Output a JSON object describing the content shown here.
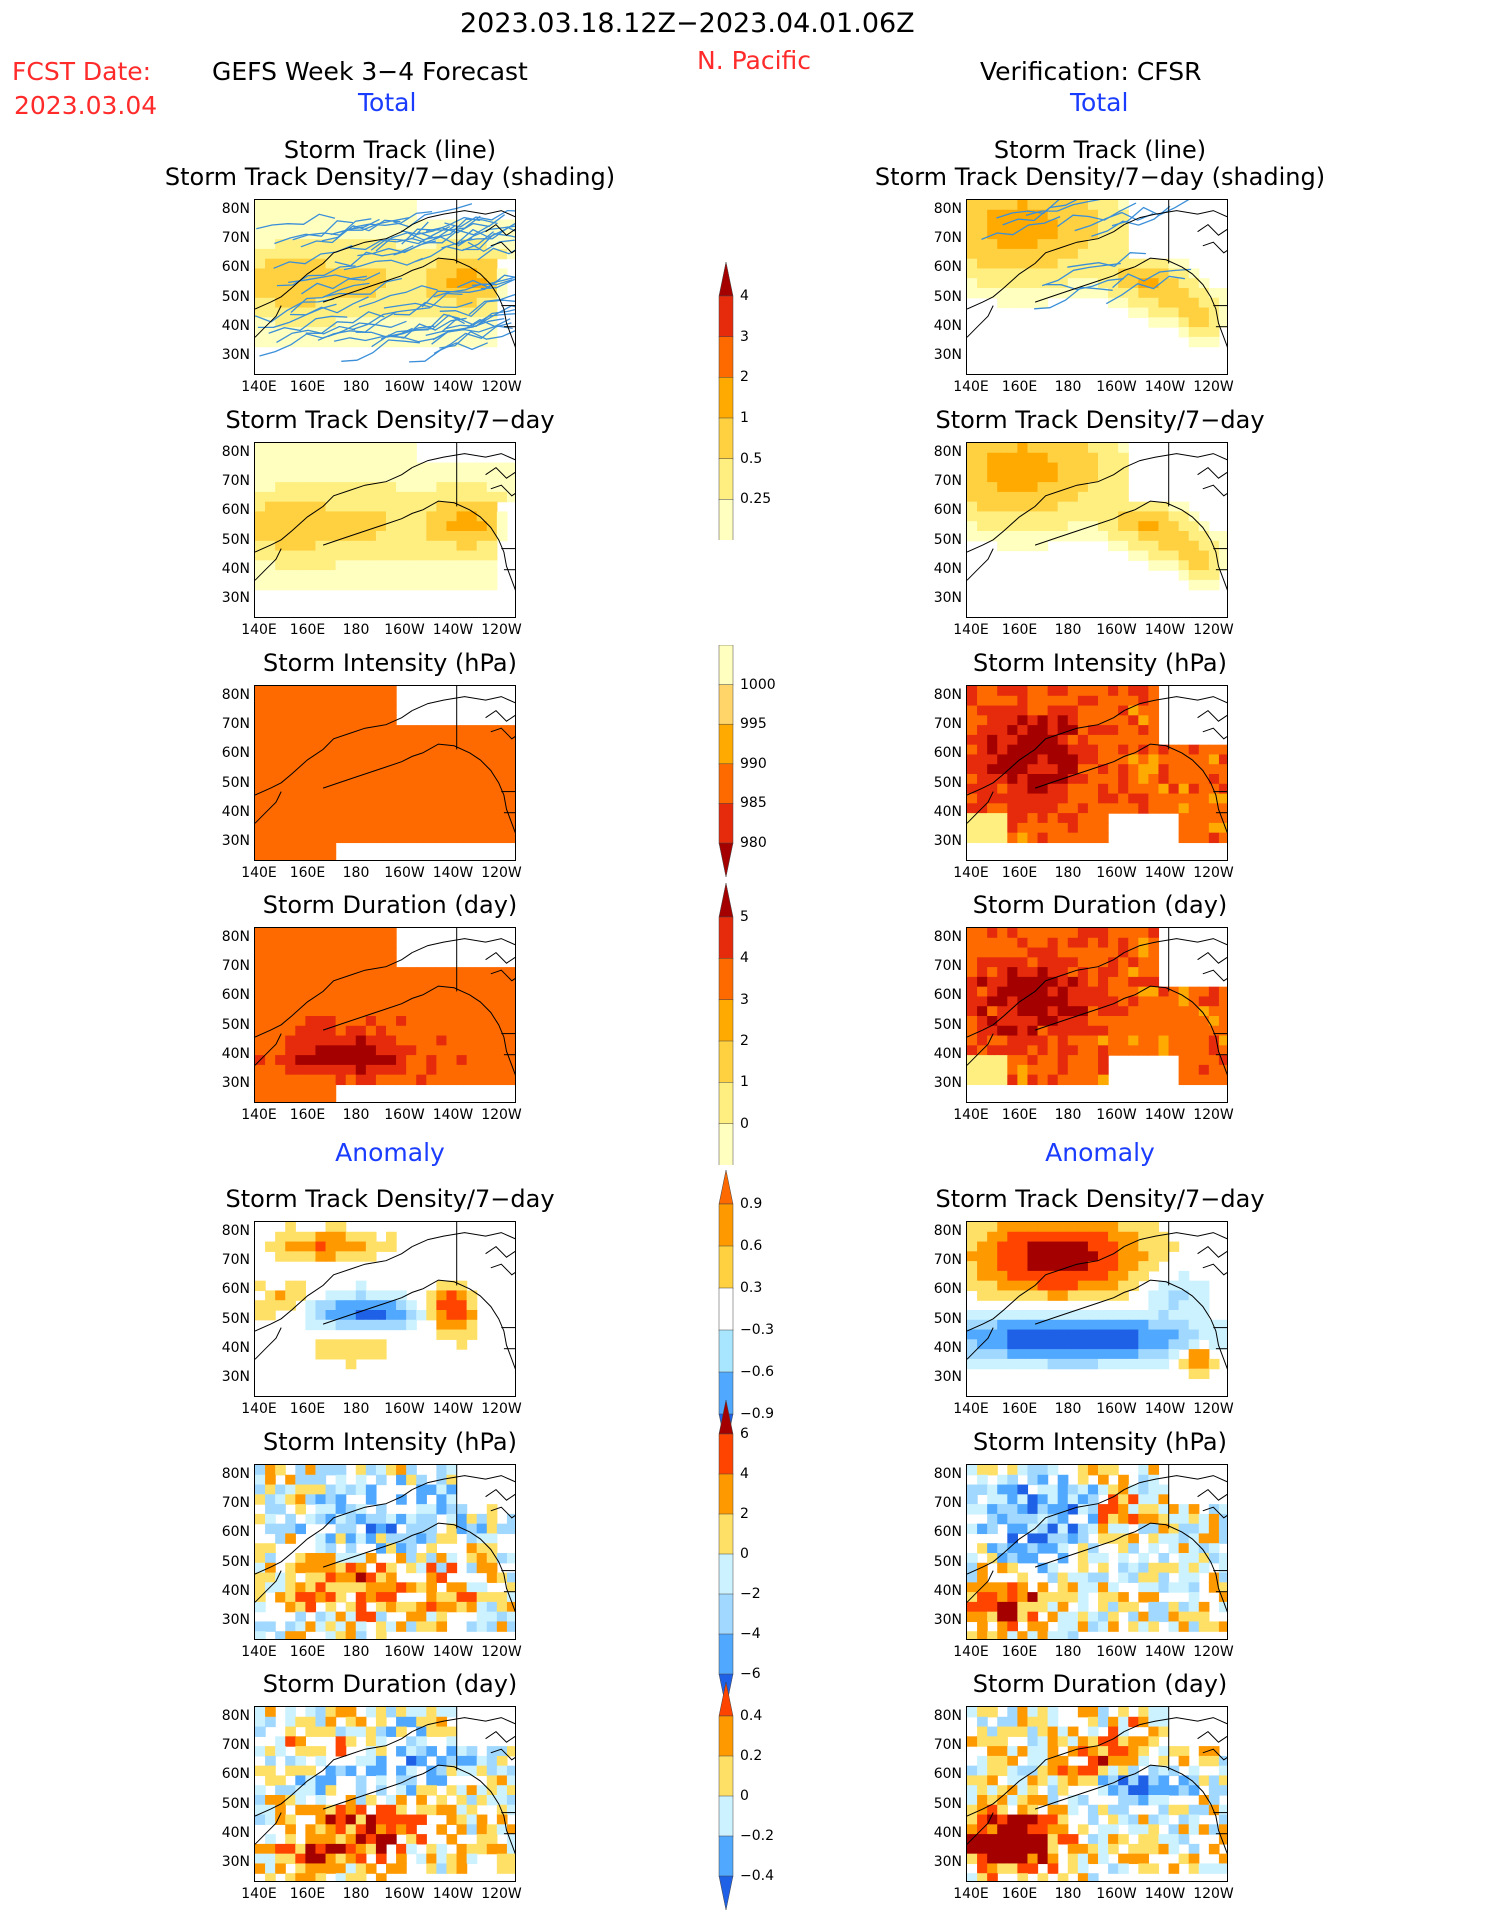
{
  "header": {
    "date_range": "2023.03.18.12Z−2023.04.01.06Z",
    "region": "N. Pacific",
    "fcst_label": "FCST Date:",
    "fcst_date": "2023.03.04",
    "left_title": "GEFS Week 3−4 Forecast",
    "right_title": "Verification: CFSR",
    "total_label": "Total",
    "anomaly_label": "Anomaly"
  },
  "axes": {
    "lat_labels": [
      "80N",
      "70N",
      "60N",
      "50N",
      "40N",
      "30N"
    ],
    "lon_labels": [
      "140E",
      "160E",
      "180",
      "160W",
      "140W",
      "120W"
    ]
  },
  "panels": [
    {
      "row": 0,
      "col": "forecast",
      "title_line1": "Storm Track (line)",
      "title_line2": "Storm Track Density/7−day (shading)",
      "field": "density_total",
      "tracks": true
    },
    {
      "row": 0,
      "col": "verification",
      "title_line1": "Storm Track (line)",
      "title_line2": "Storm Track Density/7−day (shading)",
      "field": "density_total",
      "tracks": true
    },
    {
      "row": 1,
      "col": "forecast",
      "title_line1": "Storm Track Density/7−day",
      "field": "density_total"
    },
    {
      "row": 1,
      "col": "verification",
      "title_line1": "Storm Track Density/7−day",
      "field": "density_total"
    },
    {
      "row": 2,
      "col": "forecast",
      "title_line1": "Storm Intensity (hPa)",
      "field": "intensity_total"
    },
    {
      "row": 2,
      "col": "verification",
      "title_line1": "Storm Intensity (hPa)",
      "field": "intensity_total"
    },
    {
      "row": 3,
      "col": "forecast",
      "title_line1": "Storm Duration (day)",
      "field": "duration_total"
    },
    {
      "row": 3,
      "col": "verification",
      "title_line1": "Storm Duration (day)",
      "field": "duration_total"
    },
    {
      "row": 4,
      "col": "forecast",
      "title_line1": "Storm Track Density/7−day",
      "field": "density_anom"
    },
    {
      "row": 4,
      "col": "verification",
      "title_line1": "Storm Track Density/7−day",
      "field": "density_anom"
    },
    {
      "row": 5,
      "col": "forecast",
      "title_line1": "Storm Intensity (hPa)",
      "field": "intensity_anom"
    },
    {
      "row": 5,
      "col": "verification",
      "title_line1": "Storm Intensity (hPa)",
      "field": "intensity_anom"
    },
    {
      "row": 6,
      "col": "forecast",
      "title_line1": "Storm Duration (day)",
      "field": "duration_anom"
    },
    {
      "row": 6,
      "col": "verification",
      "title_line1": "Storm Duration (day)",
      "field": "duration_anom"
    }
  ],
  "colorbars": [
    {
      "id": "density-total",
      "labels": [
        "4",
        "3",
        "2",
        "1",
        "0.5",
        "0.25"
      ],
      "colors": [
        "#a50000",
        "#e62a0c",
        "#ff6a00",
        "#ffaa00",
        "#ffd040",
        "#ffef80",
        "#ffffc0"
      ],
      "arrow": "top"
    },
    {
      "id": "intensity-total",
      "labels": [
        "1000",
        "995",
        "990",
        "985",
        "980"
      ],
      "colors": [
        "#ffffc0",
        "#ffd56a",
        "#ffaa00",
        "#ff6a00",
        "#e62a0c",
        "#a50000"
      ],
      "arrow": "bottom"
    },
    {
      "id": "duration-total",
      "labels": [
        "5",
        "4",
        "3",
        "2",
        "1",
        "0"
      ],
      "colors": [
        "#a50000",
        "#e62a0c",
        "#ff6a00",
        "#ffaa00",
        "#ffd040",
        "#ffef80",
        "#ffffc0"
      ],
      "arrow": "top"
    },
    {
      "id": "density-anom",
      "labels": [
        "0.9",
        "0.6",
        "0.3",
        "−0.3",
        "−0.6",
        "−0.9"
      ],
      "colors": [
        "#ff6a00",
        "#ff9900",
        "#ffd040",
        "#ffffff",
        "#a8e6ff",
        "#50a8ff",
        "#1e60e6"
      ],
      "arrow": "both"
    },
    {
      "id": "intensity-anom",
      "labels": [
        "6",
        "4",
        "2",
        "0",
        "−2",
        "−4",
        "−6"
      ],
      "colors": [
        "#a50000",
        "#ff4400",
        "#ff9900",
        "#ffe066",
        "#ccf2ff",
        "#a0d8ff",
        "#50a8ff",
        "#1e60e6"
      ],
      "arrow": "both"
    },
    {
      "id": "duration-anom",
      "labels": [
        "0.4",
        "0.2",
        "0",
        "−0.2",
        "−0.4"
      ],
      "colors": [
        "#ff4400",
        "#ff9900",
        "#ffe066",
        "#ccf2ff",
        "#50a8ff",
        "#1e60e6"
      ],
      "arrow": "both"
    }
  ]
}
